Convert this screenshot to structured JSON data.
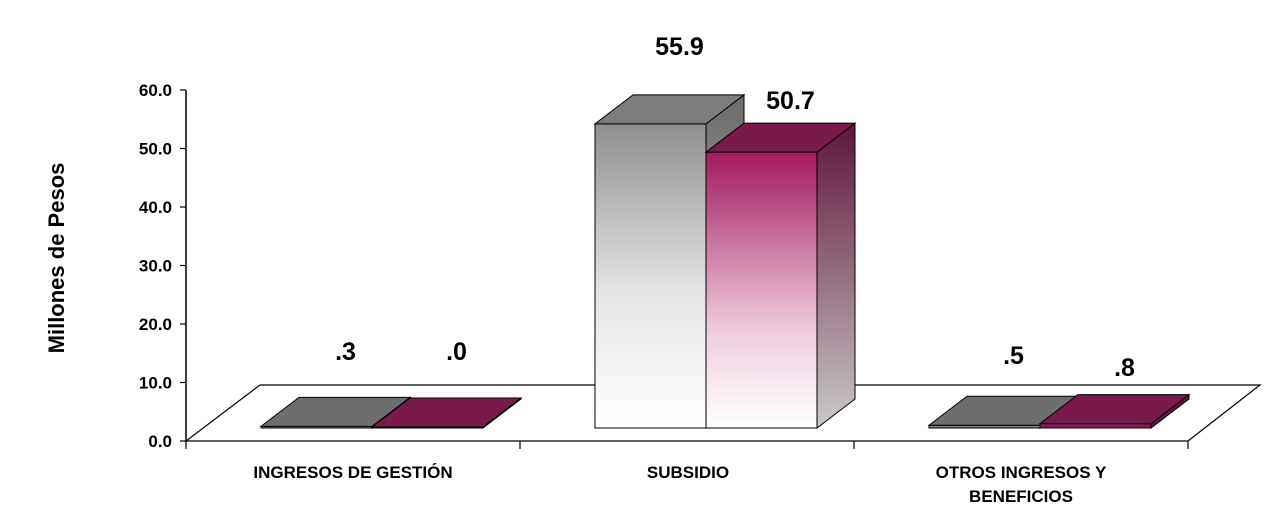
{
  "chart_data": {
    "type": "bar",
    "categories": [
      [
        "INGRESOS DE GESTIÓN"
      ],
      [
        "SUBSIDIO"
      ],
      [
        "OTROS INGRESOS Y",
        "BENEFICIOS"
      ]
    ],
    "series": [
      {
        "values": [
          0.3,
          55.9,
          0.5
        ],
        "labels": [
          ".3",
          "55.9",
          ".5"
        ],
        "color": "#8c8c8c"
      },
      {
        "values": [
          0.0,
          50.7,
          0.8
        ],
        "labels": [
          ".0",
          "50.7",
          ".8"
        ],
        "color": "#8a1c55"
      }
    ],
    "y_ticks": [
      "0.0",
      "10.0",
      "20.0",
      "30.0",
      "40.0",
      "50.0",
      "60.0"
    ],
    "ylabel": "Millones de Pesos",
    "ylim": [
      0,
      60
    ],
    "grid": false,
    "style": "3d-bar"
  }
}
